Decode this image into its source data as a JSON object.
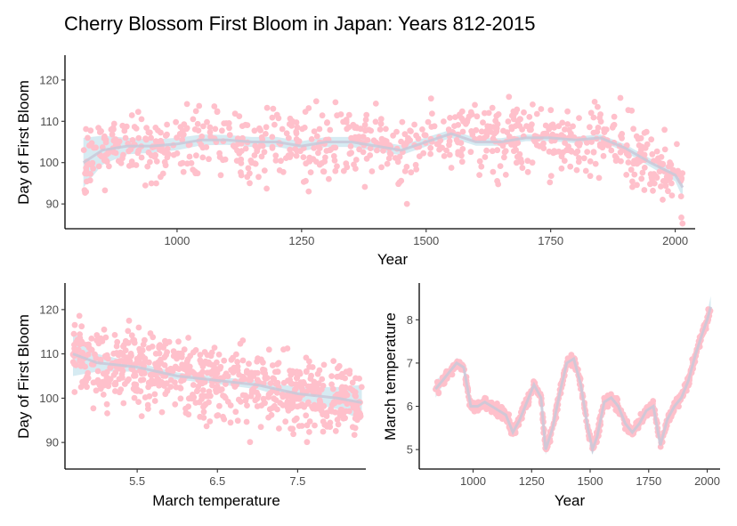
{
  "title": "Cherry Blossom First Bloom in Japan: Years 812-2015",
  "colors": {
    "points": "#ffc0cb",
    "ribbon": "#add8e6",
    "smooth_line": "#c9c9d9",
    "axis": "#000000",
    "tick_text": "#4d4d4d"
  },
  "chart_data": [
    {
      "type": "scatter",
      "name": "bloom-by-year",
      "xlabel": "Year",
      "ylabel": "Day of First Bloom",
      "xlim": [
        775,
        2040
      ],
      "ylim": [
        84,
        126
      ],
      "xticks": [
        1000,
        1250,
        1500,
        1750,
        2000
      ],
      "yticks": [
        90,
        100,
        110,
        120
      ],
      "x_range": [
        812,
        2015
      ],
      "smooth": {
        "x": [
          812,
          850,
          900,
          950,
          1000,
          1050,
          1100,
          1150,
          1200,
          1250,
          1300,
          1350,
          1400,
          1450,
          1500,
          1550,
          1600,
          1650,
          1700,
          1750,
          1800,
          1850,
          1900,
          1950,
          2000,
          2015
        ],
        "y": [
          100,
          103,
          104,
          104,
          104.5,
          105.5,
          105.5,
          105,
          105,
          104,
          105,
          105,
          104,
          103,
          105,
          107,
          105,
          105,
          106,
          106,
          105.5,
          106,
          103.5,
          100,
          97,
          94
        ],
        "ci_half_width": [
          6,
          3.5,
          2,
          1.6,
          1.5,
          1.3,
          1.2,
          1.2,
          1.2,
          1.2,
          1.2,
          1.2,
          1.2,
          1.2,
          1.1,
          1,
          0.9,
          0.9,
          0.8,
          0.8,
          0.8,
          0.8,
          0.9,
          1,
          1.5,
          2.5
        ]
      }
    },
    {
      "type": "scatter",
      "name": "bloom-by-temperature",
      "xlabel": "March temperature",
      "ylabel": "Day of First Bloom",
      "xlim": [
        4.6,
        8.35
      ],
      "ylim": [
        84,
        126
      ],
      "xticks": [
        5.5,
        6.5,
        7.5
      ],
      "yticks": [
        90,
        100,
        110,
        120
      ],
      "x_range": [
        4.7,
        8.3
      ],
      "smooth": {
        "x": [
          4.7,
          5.0,
          5.5,
          6.0,
          6.5,
          7.0,
          7.5,
          8.0,
          8.3
        ],
        "y": [
          110,
          108,
          107,
          105,
          104,
          103,
          101,
          100,
          99
        ],
        "ci_half_width": [
          5,
          2,
          1,
          0.8,
          0.8,
          1,
          1.5,
          2.5,
          4
        ]
      }
    },
    {
      "type": "scatter",
      "name": "temperature-by-year",
      "xlabel": "Year",
      "ylabel": "March temperature",
      "xlim": [
        770,
        2055
      ],
      "ylim": [
        4.55,
        8.85
      ],
      "xticks": [
        1000,
        1250,
        1500,
        1750,
        2000
      ],
      "yticks": [
        5,
        6,
        7,
        8
      ],
      "x_range": [
        840,
        2015
      ],
      "smooth": {
        "x": [
          840,
          870,
          900,
          930,
          960,
          990,
          1020,
          1050,
          1080,
          1110,
          1140,
          1170,
          1200,
          1230,
          1260,
          1290,
          1310,
          1340,
          1370,
          1400,
          1430,
          1460,
          1490,
          1510,
          1530,
          1560,
          1590,
          1620,
          1650,
          1680,
          1710,
          1740,
          1770,
          1800,
          1830,
          1860,
          1890,
          1920,
          1950,
          1980,
          2000,
          2015
        ],
        "y": [
          6.4,
          6.6,
          6.8,
          7.0,
          6.9,
          6.0,
          6.0,
          6.1,
          6.0,
          5.9,
          5.8,
          5.4,
          5.7,
          6.1,
          6.5,
          6.2,
          5.0,
          5.5,
          6.3,
          7.0,
          7.1,
          6.5,
          5.5,
          5.0,
          5.3,
          6.1,
          6.2,
          6.0,
          5.6,
          5.4,
          5.6,
          5.9,
          6.0,
          5.1,
          5.7,
          6.0,
          6.2,
          6.6,
          7.2,
          7.7,
          8.0,
          8.3
        ],
        "ci_half_width": [
          0.2,
          0.12,
          0.12,
          0.12,
          0.12,
          0.12,
          0.12,
          0.12,
          0.12,
          0.12,
          0.12,
          0.12,
          0.12,
          0.12,
          0.12,
          0.12,
          0.12,
          0.12,
          0.12,
          0.12,
          0.12,
          0.12,
          0.12,
          0.12,
          0.12,
          0.12,
          0.12,
          0.12,
          0.12,
          0.12,
          0.12,
          0.12,
          0.12,
          0.12,
          0.12,
          0.12,
          0.12,
          0.12,
          0.12,
          0.12,
          0.15,
          0.25
        ]
      }
    }
  ]
}
